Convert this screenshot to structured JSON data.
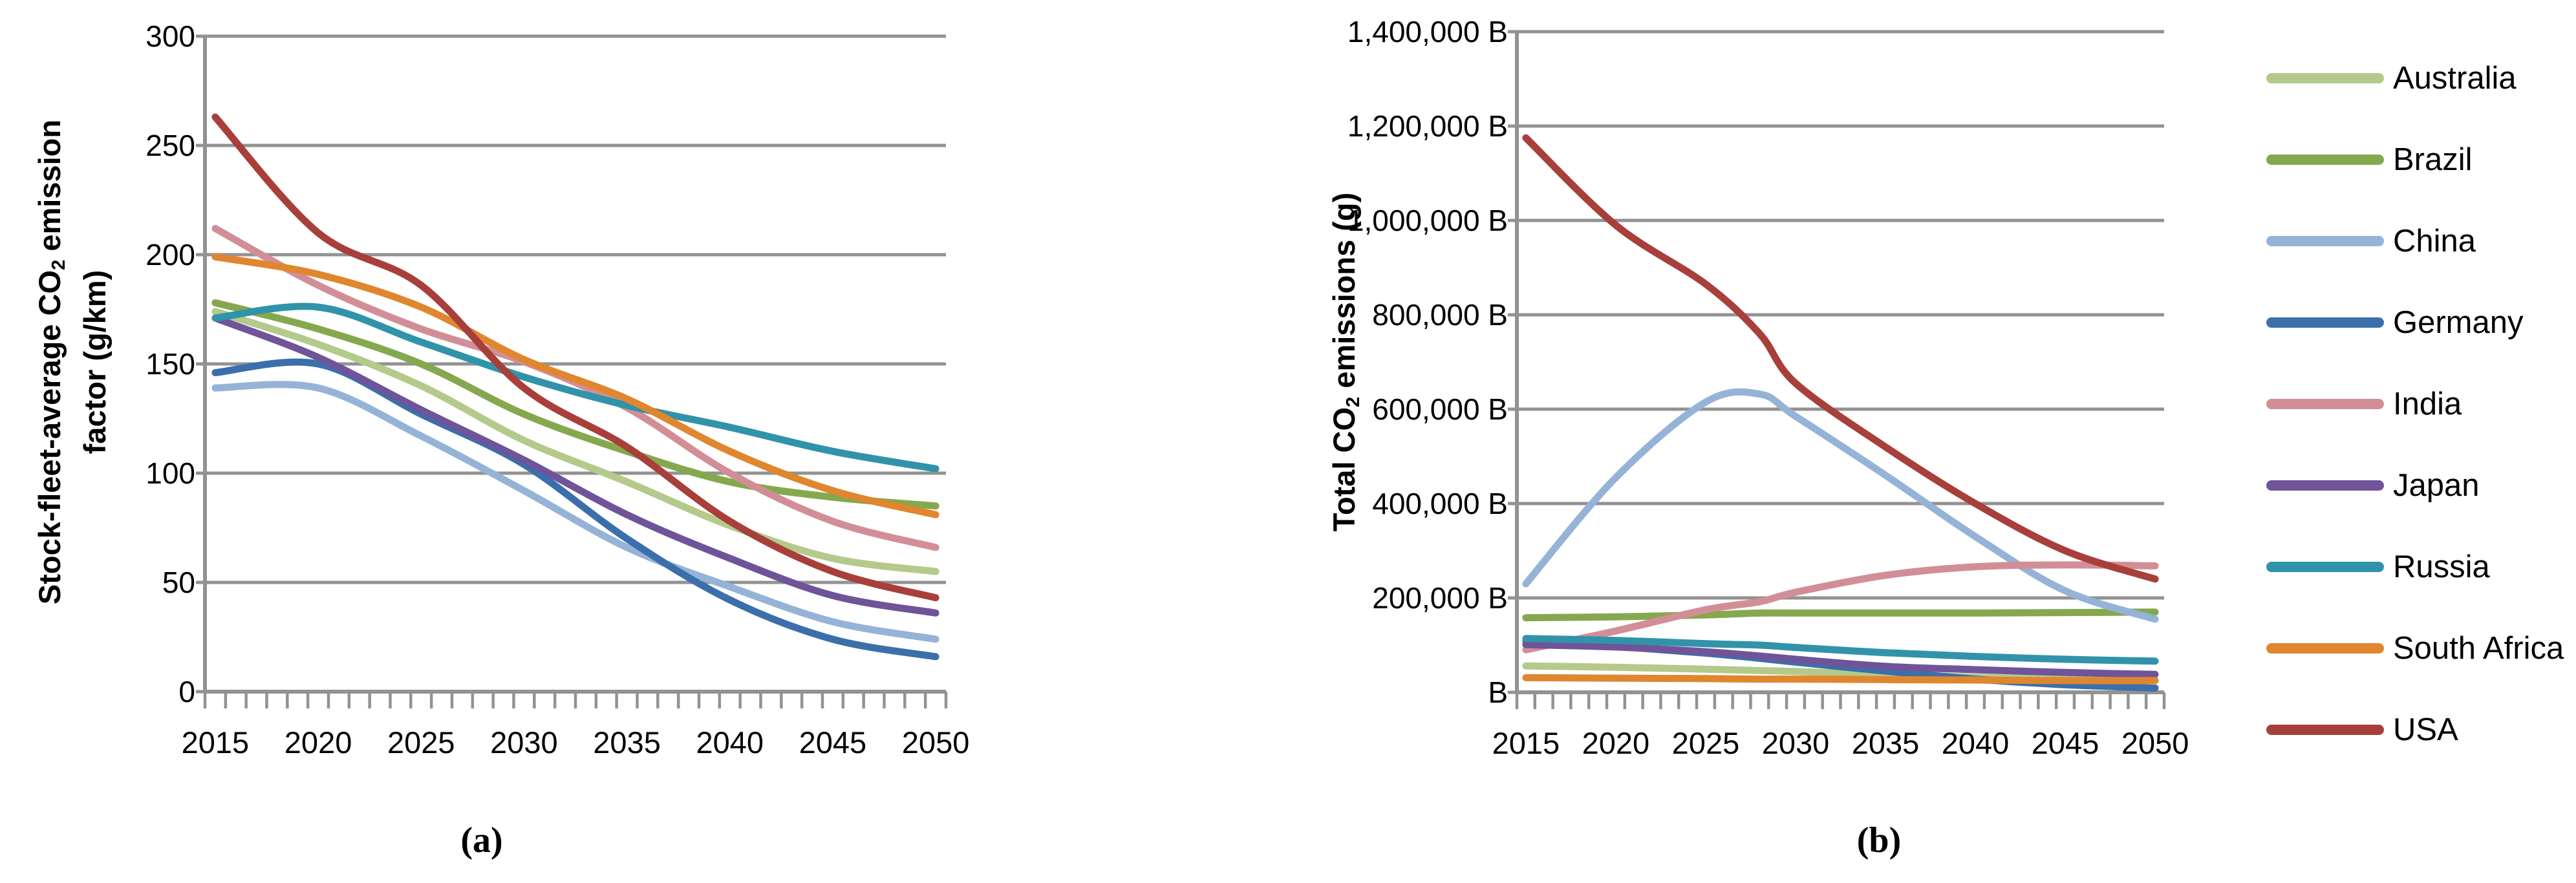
{
  "figure": {
    "captions": {
      "a": "(a)",
      "b": "(b)"
    }
  },
  "legend": {
    "items": [
      {
        "label": "Australia",
        "color": "#b3ca8b"
      },
      {
        "label": "Brazil",
        "color": "#85a84e"
      },
      {
        "label": "China",
        "color": "#95b3d7"
      },
      {
        "label": "Germany",
        "color": "#3b6fab"
      },
      {
        "label": "India",
        "color": "#d28e97"
      },
      {
        "label": "Japan",
        "color": "#6f5499"
      },
      {
        "label": "Russia",
        "color": "#3193a9"
      },
      {
        "label": "South Africa",
        "color": "#e0862f"
      },
      {
        "label": "USA",
        "color": "#a83f3a"
      }
    ]
  },
  "chart_data": [
    {
      "id": "a",
      "type": "line",
      "title": "",
      "xlabel": "",
      "ylabel_parts": [
        [
          {
            "t": "Stock-fleet-average CO"
          },
          {
            "t": "2",
            "sub": true
          },
          {
            "t": " emission"
          }
        ],
        [
          {
            "t": "factor (g/km)"
          }
        ]
      ],
      "grid": true,
      "legend_position": "none",
      "xlim": [
        2015,
        2050
      ],
      "ylim": [
        0,
        300
      ],
      "ytick_step": 50,
      "ytick_labels": [
        "0",
        "50",
        "100",
        "150",
        "200",
        "250",
        "300"
      ],
      "xtick_labels": [
        "2015",
        "2020",
        "2025",
        "2030",
        "2035",
        "2040",
        "2045",
        "2050"
      ],
      "x": [
        2015,
        2020,
        2025,
        2030,
        2035,
        2040,
        2045,
        2050
      ],
      "series": [
        {
          "name": "Australia",
          "values": [
            174,
            159,
            140,
            115,
            96,
            76,
            61,
            55
          ]
        },
        {
          "name": "Brazil",
          "values": [
            178,
            166,
            150,
            127,
            110,
            96,
            89,
            85
          ]
        },
        {
          "name": "China",
          "values": [
            139,
            139,
            117,
            92,
            66,
            48,
            32,
            24
          ]
        },
        {
          "name": "Germany",
          "values": [
            146,
            150,
            127,
            104,
            70,
            42,
            24,
            16
          ]
        },
        {
          "name": "India",
          "values": [
            212,
            186,
            166,
            151,
            130,
            100,
            78,
            66
          ]
        },
        {
          "name": "Japan",
          "values": [
            171,
            153,
            129,
            106,
            81,
            61,
            44,
            36
          ]
        },
        {
          "name": "Russia",
          "values": [
            171,
            176,
            160,
            144,
            131,
            121,
            110,
            102
          ]
        },
        {
          "name": "South Africa",
          "values": [
            199,
            191,
            176,
            152,
            134,
            110,
            92,
            81
          ]
        },
        {
          "name": "USA",
          "values": [
            263,
            210,
            186,
            139,
            112,
            78,
            55,
            43
          ]
        }
      ]
    },
    {
      "id": "b",
      "type": "line",
      "title": "",
      "xlabel": "",
      "ylabel_parts": [
        [
          {
            "t": "Total CO"
          },
          {
            "t": "2",
            "sub": true
          },
          {
            "t": " emissions (g)"
          }
        ]
      ],
      "grid": true,
      "legend_position": "right",
      "xlim": [
        2015,
        2050
      ],
      "ylim": [
        0,
        1400000
      ],
      "ytick_step": 200000,
      "ytick_labels": [
        "B",
        "200,000 B",
        "400,000 B",
        "600,000 B",
        "800,000 B",
        "1,000,000 B",
        "1,200,000 B",
        "1,400,000 B"
      ],
      "xtick_labels": [
        "2015",
        "2020",
        "2025",
        "2030",
        "2035",
        "2040",
        "2045",
        "2050"
      ],
      "x": [
        2015,
        2020,
        2025,
        2028,
        2030,
        2035,
        2040,
        2045,
        2050
      ],
      "series": [
        {
          "name": "Australia",
          "values": [
            56000,
            53000,
            49000,
            46000,
            44000,
            38000,
            32000,
            28000,
            25000
          ]
        },
        {
          "name": "Brazil",
          "values": [
            158000,
            160000,
            164000,
            168000,
            168000,
            168000,
            168000,
            169000,
            170000
          ]
        },
        {
          "name": "China",
          "values": [
            230000,
            455000,
            615000,
            632000,
            585000,
            460000,
            330000,
            215000,
            155000
          ]
        },
        {
          "name": "Germany",
          "values": [
            107000,
            97000,
            83000,
            72000,
            64000,
            45000,
            28000,
            16000,
            9000
          ]
        },
        {
          "name": "India",
          "values": [
            90000,
            130000,
            175000,
            192000,
            212000,
            248000,
            266000,
            270000,
            268000
          ]
        },
        {
          "name": "Japan",
          "values": [
            101000,
            96000,
            86000,
            77000,
            70000,
            55000,
            48000,
            42000,
            38000
          ]
        },
        {
          "name": "Russia",
          "values": [
            114000,
            110000,
            103000,
            100000,
            95000,
            84000,
            76000,
            70000,
            66000
          ]
        },
        {
          "name": "South Africa",
          "values": [
            31000,
            30000,
            29000,
            28000,
            28000,
            27000,
            26000,
            25000,
            25000
          ]
        },
        {
          "name": "USA",
          "values": [
            1175000,
            990000,
            865000,
            760000,
            655000,
            520000,
            400000,
            300000,
            240000
          ]
        }
      ]
    }
  ]
}
